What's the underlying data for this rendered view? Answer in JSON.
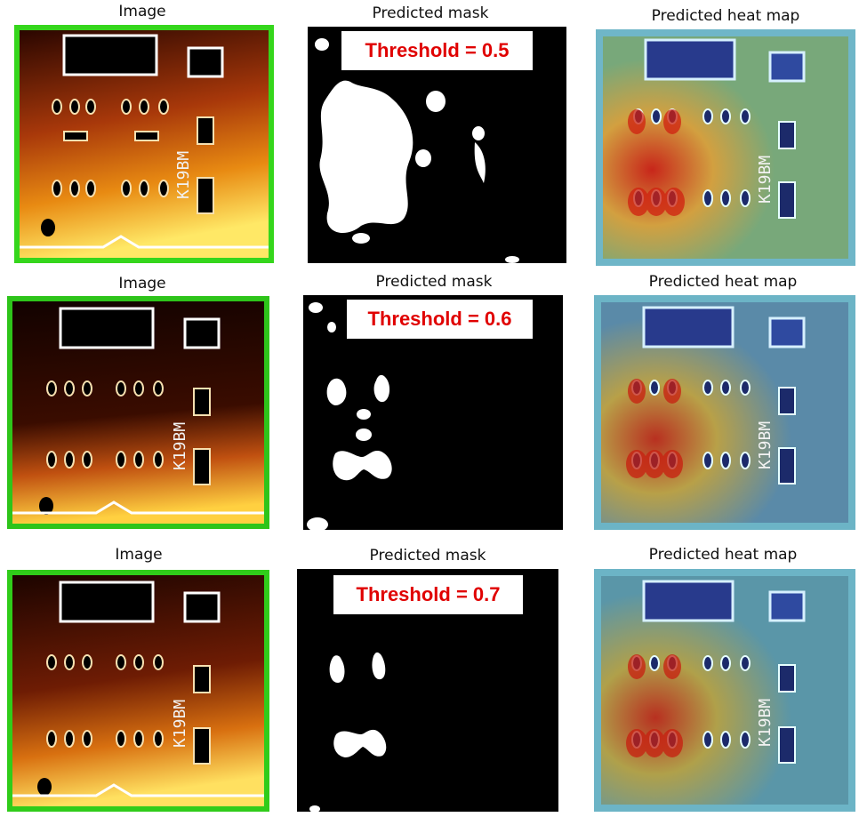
{
  "rows": [
    {
      "image_title": "Image",
      "mask_title": "Predicted mask",
      "heat_title": "Predicted heat map",
      "threshold_label": "Threshold = 0.5",
      "board_marking": "K19BM"
    },
    {
      "image_title": "Image",
      "mask_title": "Predicted mask",
      "heat_title": "Predicted heat map",
      "threshold_label": "Threshold = 0.6",
      "board_marking": "K19BM"
    },
    {
      "image_title": "Image",
      "mask_title": "Predicted mask",
      "heat_title": "Predicted heat map",
      "threshold_label": "Threshold = 0.7",
      "board_marking": "K19BM"
    }
  ],
  "colors": {
    "threshold_text": "#e00000",
    "mask_background": "#000000",
    "mask_foreground": "#ffffff"
  }
}
